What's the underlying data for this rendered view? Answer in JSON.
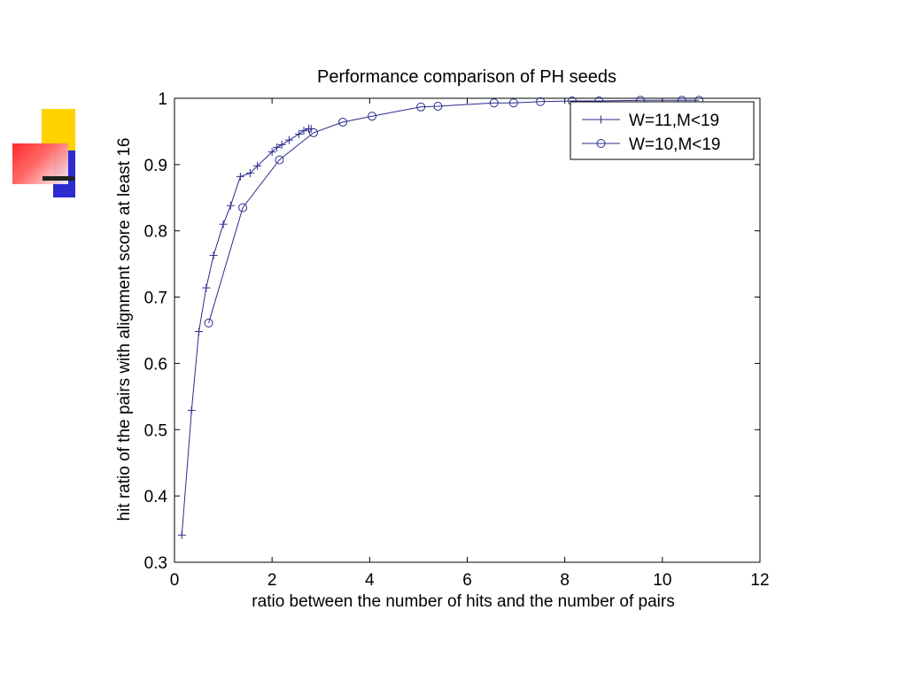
{
  "slide": {
    "decoration_colors": {
      "yellow": "#ffd200",
      "blue": "#2b2bd0",
      "red": "#ff3a3a",
      "dark": "#222222"
    }
  },
  "chart_data": {
    "type": "line",
    "title": "Performance comparison of PH seeds",
    "xlabel": "ratio between the number of hits and the number of pairs",
    "ylabel": "hit ratio of the pairs with alignment score at least 16",
    "xlim": [
      0,
      12
    ],
    "ylim": [
      0.3,
      1
    ],
    "xticks": [
      0,
      2,
      4,
      6,
      8,
      10,
      12
    ],
    "xtick_labels": [
      "0",
      "2",
      "4",
      "6",
      "8",
      "10",
      "12"
    ],
    "yticks": [
      0.3,
      0.4,
      0.5,
      0.6,
      0.7,
      0.8,
      0.9,
      1
    ],
    "ytick_labels": [
      "0.3",
      "0.4",
      "0.5",
      "0.6",
      "0.7",
      "0.8",
      "0.9",
      "1"
    ],
    "grid": false,
    "legend_position": "top-right",
    "line_color": "#2b2b8f",
    "series": [
      {
        "name": "W=11,M<19",
        "marker": "plus",
        "points": [
          [
            0.15,
            0.341
          ],
          [
            0.35,
            0.529
          ],
          [
            0.5,
            0.648
          ],
          [
            0.65,
            0.714
          ],
          [
            0.8,
            0.763
          ],
          [
            1.0,
            0.81
          ],
          [
            1.15,
            0.838
          ],
          [
            1.35,
            0.882
          ],
          [
            1.55,
            0.887
          ],
          [
            1.7,
            0.898
          ],
          [
            2.0,
            0.919
          ],
          [
            2.1,
            0.926
          ],
          [
            2.2,
            0.93
          ],
          [
            2.35,
            0.937
          ],
          [
            2.55,
            0.946
          ],
          [
            2.65,
            0.951
          ],
          [
            2.75,
            0.954
          ],
          [
            2.8,
            0.954
          ]
        ]
      },
      {
        "name": "W=10,M<19",
        "marker": "circle",
        "points": [
          [
            0.7,
            0.661
          ],
          [
            1.4,
            0.835
          ],
          [
            2.15,
            0.907
          ],
          [
            2.85,
            0.948
          ],
          [
            3.45,
            0.964
          ],
          [
            4.05,
            0.973
          ],
          [
            5.05,
            0.987
          ],
          [
            5.4,
            0.988
          ],
          [
            6.55,
            0.993
          ],
          [
            6.95,
            0.993
          ],
          [
            7.5,
            0.995
          ],
          [
            8.15,
            0.996
          ],
          [
            8.7,
            0.996
          ],
          [
            9.55,
            0.997
          ],
          [
            10.4,
            0.997
          ],
          [
            10.75,
            0.997
          ]
        ]
      }
    ]
  }
}
